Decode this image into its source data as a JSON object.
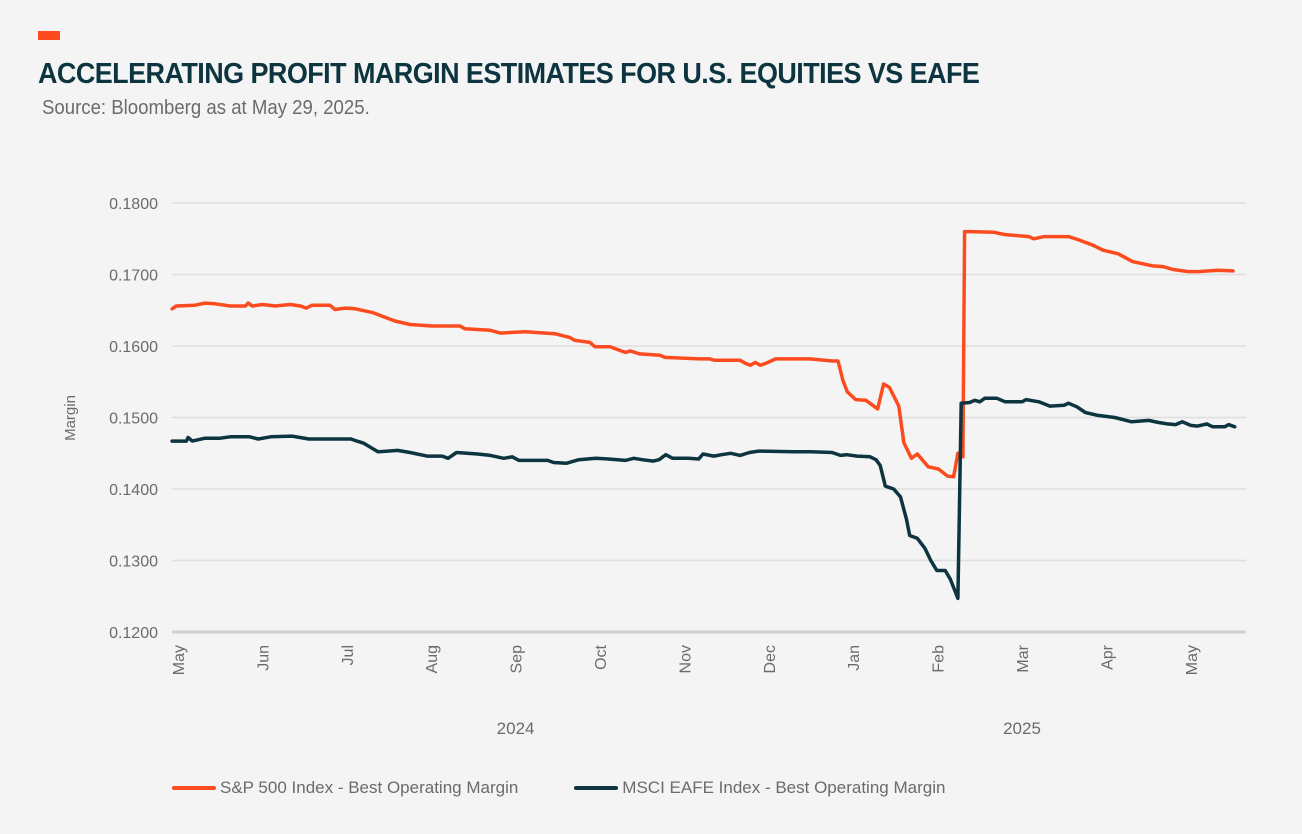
{
  "header": {
    "title": "ACCELERATING PROFIT MARGIN ESTIMATES FOR U.S. EQUITIES VS EAFE",
    "subtitle": "Source: Bloomberg as at May 29, 2025.",
    "accent_color": "#fc4c1f"
  },
  "chart_data": {
    "type": "line",
    "title": "ACCELERATING PROFIT MARGIN ESTIMATES FOR U.S. EQUITIES VS EAFE",
    "subtitle": "Source: Bloomberg as at May 29, 2025.",
    "xlabel": "",
    "ylabel": "Margin",
    "ylim": [
      0.12,
      0.18
    ],
    "yticks": [
      "0.1200",
      "0.1300",
      "0.1400",
      "0.1500",
      "0.1600",
      "0.1700",
      "0.1800"
    ],
    "ytick_values": [
      0.12,
      0.13,
      0.14,
      0.15,
      0.16,
      0.17,
      0.18
    ],
    "x_unit": "months since start of May 2024",
    "xlim": [
      -0.1,
      12.7
    ],
    "xticks": [
      "May",
      "Jun",
      "Jul",
      "Aug",
      "Sep",
      "Oct",
      "Nov",
      "Dec",
      "Jan",
      "Feb",
      "Mar",
      "Apr",
      "May"
    ],
    "xtick_values": [
      0,
      1,
      2,
      3,
      4,
      5,
      6,
      7,
      8,
      9,
      10,
      11,
      12
    ],
    "year_labels": [
      {
        "label": "2024",
        "x": 4.0
      },
      {
        "label": "2025",
        "x": 10.0
      }
    ],
    "grid": true,
    "legend_position": "bottom",
    "series": [
      {
        "name": "S&P 500 Index - Best Operating Margin",
        "color": "#fc4c1f",
        "points": [
          [
            -0.07,
            0.1652
          ],
          [
            -0.02,
            0.1656
          ],
          [
            0.2,
            0.1657
          ],
          [
            0.32,
            0.166
          ],
          [
            0.44,
            0.1659
          ],
          [
            0.62,
            0.1656
          ],
          [
            0.8,
            0.1656
          ],
          [
            0.83,
            0.166
          ],
          [
            0.88,
            0.1656
          ],
          [
            1.0,
            0.1658
          ],
          [
            1.15,
            0.1656
          ],
          [
            1.33,
            0.1658
          ],
          [
            1.45,
            0.1656
          ],
          [
            1.52,
            0.1653
          ],
          [
            1.59,
            0.1657
          ],
          [
            1.68,
            0.1657
          ],
          [
            1.8,
            0.1657
          ],
          [
            1.86,
            0.1651
          ],
          [
            1.98,
            0.1653
          ],
          [
            2.1,
            0.1652
          ],
          [
            2.3,
            0.1647
          ],
          [
            2.57,
            0.1635
          ],
          [
            2.75,
            0.163
          ],
          [
            3.01,
            0.1628
          ],
          [
            3.34,
            0.1628
          ],
          [
            3.4,
            0.1624
          ],
          [
            3.7,
            0.1622
          ],
          [
            3.82,
            0.1618
          ],
          [
            4.11,
            0.162
          ],
          [
            4.47,
            0.1617
          ],
          [
            4.64,
            0.1612
          ],
          [
            4.7,
            0.1608
          ],
          [
            4.88,
            0.1605
          ],
          [
            4.94,
            0.1599
          ],
          [
            5.12,
            0.1599
          ],
          [
            5.21,
            0.1595
          ],
          [
            5.3,
            0.1591
          ],
          [
            5.36,
            0.1593
          ],
          [
            5.47,
            0.1589
          ],
          [
            5.71,
            0.1587
          ],
          [
            5.77,
            0.1584
          ],
          [
            6.18,
            0.1582
          ],
          [
            6.3,
            0.1582
          ],
          [
            6.36,
            0.158
          ],
          [
            6.66,
            0.158
          ],
          [
            6.72,
            0.1576
          ],
          [
            6.78,
            0.1573
          ],
          [
            6.84,
            0.1577
          ],
          [
            6.9,
            0.1573
          ],
          [
            6.99,
            0.1577
          ],
          [
            7.08,
            0.1582
          ],
          [
            7.49,
            0.1582
          ],
          [
            7.75,
            0.1579
          ],
          [
            7.82,
            0.1579
          ],
          [
            7.88,
            0.1551
          ],
          [
            7.93,
            0.1536
          ],
          [
            8.03,
            0.1525
          ],
          [
            8.15,
            0.1524
          ],
          [
            8.29,
            0.1512
          ],
          [
            8.36,
            0.1547
          ],
          [
            8.43,
            0.1542
          ],
          [
            8.54,
            0.1516
          ],
          [
            8.6,
            0.1465
          ],
          [
            8.69,
            0.1443
          ],
          [
            8.76,
            0.1449
          ],
          [
            8.89,
            0.1431
          ],
          [
            9.01,
            0.1428
          ],
          [
            9.12,
            0.1418
          ],
          [
            9.19,
            0.1417
          ],
          [
            9.24,
            0.145
          ],
          [
            9.26,
            0.1445
          ],
          [
            9.3,
            0.1445
          ],
          [
            9.32,
            0.176
          ],
          [
            9.38,
            0.176
          ],
          [
            9.67,
            0.1759
          ],
          [
            9.79,
            0.1756
          ],
          [
            10.08,
            0.1753
          ],
          [
            10.14,
            0.175
          ],
          [
            10.26,
            0.1753
          ],
          [
            10.55,
            0.1753
          ],
          [
            10.66,
            0.1749
          ],
          [
            10.84,
            0.1741
          ],
          [
            10.96,
            0.1734
          ],
          [
            11.14,
            0.1729
          ],
          [
            11.31,
            0.1718
          ],
          [
            11.55,
            0.1712
          ],
          [
            11.67,
            0.1711
          ],
          [
            11.79,
            0.1707
          ],
          [
            11.97,
            0.1704
          ],
          [
            12.09,
            0.1704
          ],
          [
            12.32,
            0.1706
          ],
          [
            12.5,
            0.1705
          ]
        ]
      },
      {
        "name": "MSCI EAFE Index - Best Operating Margin",
        "color": "#0d3540",
        "points": [
          [
            -0.07,
            0.1467
          ],
          [
            0.1,
            0.1467
          ],
          [
            0.12,
            0.1472
          ],
          [
            0.17,
            0.1467
          ],
          [
            0.32,
            0.1471
          ],
          [
            0.5,
            0.1471
          ],
          [
            0.62,
            0.1473
          ],
          [
            0.85,
            0.1473
          ],
          [
            0.95,
            0.147
          ],
          [
            1.1,
            0.1473
          ],
          [
            1.35,
            0.1474
          ],
          [
            1.55,
            0.147
          ],
          [
            1.75,
            0.147
          ],
          [
            2.05,
            0.147
          ],
          [
            2.12,
            0.1467
          ],
          [
            2.2,
            0.1464
          ],
          [
            2.37,
            0.1452
          ],
          [
            2.6,
            0.1454
          ],
          [
            2.75,
            0.1451
          ],
          [
            2.95,
            0.1446
          ],
          [
            3.13,
            0.1446
          ],
          [
            3.2,
            0.1443
          ],
          [
            3.3,
            0.1451
          ],
          [
            3.55,
            0.1449
          ],
          [
            3.7,
            0.1447
          ],
          [
            3.86,
            0.1443
          ],
          [
            3.96,
            0.1445
          ],
          [
            4.04,
            0.144
          ],
          [
            4.38,
            0.144
          ],
          [
            4.45,
            0.1437
          ],
          [
            4.6,
            0.1436
          ],
          [
            4.75,
            0.1441
          ],
          [
            4.95,
            0.1443
          ],
          [
            5.1,
            0.1442
          ],
          [
            5.3,
            0.144
          ],
          [
            5.4,
            0.1443
          ],
          [
            5.5,
            0.1441
          ],
          [
            5.63,
            0.1439
          ],
          [
            5.7,
            0.1441
          ],
          [
            5.78,
            0.1448
          ],
          [
            5.86,
            0.1443
          ],
          [
            6.05,
            0.1443
          ],
          [
            6.17,
            0.1442
          ],
          [
            6.22,
            0.1449
          ],
          [
            6.35,
            0.1446
          ],
          [
            6.44,
            0.1448
          ],
          [
            6.55,
            0.145
          ],
          [
            6.66,
            0.1447
          ],
          [
            6.77,
            0.1451
          ],
          [
            6.88,
            0.1453
          ],
          [
            7.3,
            0.1452
          ],
          [
            7.5,
            0.1452
          ],
          [
            7.75,
            0.1451
          ],
          [
            7.85,
            0.1447
          ],
          [
            7.92,
            0.1448
          ],
          [
            8.05,
            0.1446
          ],
          [
            8.2,
            0.1445
          ],
          [
            8.27,
            0.1441
          ],
          [
            8.32,
            0.1433
          ],
          [
            8.38,
            0.1404
          ],
          [
            8.48,
            0.14
          ],
          [
            8.56,
            0.1389
          ],
          [
            8.63,
            0.1358
          ],
          [
            8.67,
            0.1335
          ],
          [
            8.76,
            0.1331
          ],
          [
            8.85,
            0.1317
          ],
          [
            8.92,
            0.13
          ],
          [
            8.99,
            0.1286
          ],
          [
            9.09,
            0.1286
          ],
          [
            9.15,
            0.1274
          ],
          [
            9.24,
            0.1247
          ],
          [
            9.28,
            0.152
          ],
          [
            9.38,
            0.1521
          ],
          [
            9.44,
            0.1524
          ],
          [
            9.5,
            0.1522
          ],
          [
            9.56,
            0.1527
          ],
          [
            9.7,
            0.1527
          ],
          [
            9.8,
            0.1522
          ],
          [
            10.0,
            0.1522
          ],
          [
            10.05,
            0.1525
          ],
          [
            10.2,
            0.1522
          ],
          [
            10.33,
            0.1516
          ],
          [
            10.5,
            0.1517
          ],
          [
            10.55,
            0.152
          ],
          [
            10.65,
            0.1515
          ],
          [
            10.75,
            0.1507
          ],
          [
            10.9,
            0.1503
          ],
          [
            11.1,
            0.15
          ],
          [
            11.3,
            0.1494
          ],
          [
            11.5,
            0.1496
          ],
          [
            11.62,
            0.1493
          ],
          [
            11.72,
            0.1491
          ],
          [
            11.82,
            0.149
          ],
          [
            11.9,
            0.1494
          ],
          [
            12.0,
            0.1489
          ],
          [
            12.08,
            0.1488
          ],
          [
            12.19,
            0.1491
          ],
          [
            12.26,
            0.1487
          ],
          [
            12.4,
            0.1487
          ],
          [
            12.45,
            0.149
          ],
          [
            12.52,
            0.1487
          ]
        ]
      }
    ]
  },
  "legend": {
    "items": [
      {
        "label": "S&P 500 Index - Best Operating Margin",
        "color": "#fc4c1f"
      },
      {
        "label": "MSCI EAFE Index - Best Operating Margin",
        "color": "#0d3540"
      }
    ]
  }
}
